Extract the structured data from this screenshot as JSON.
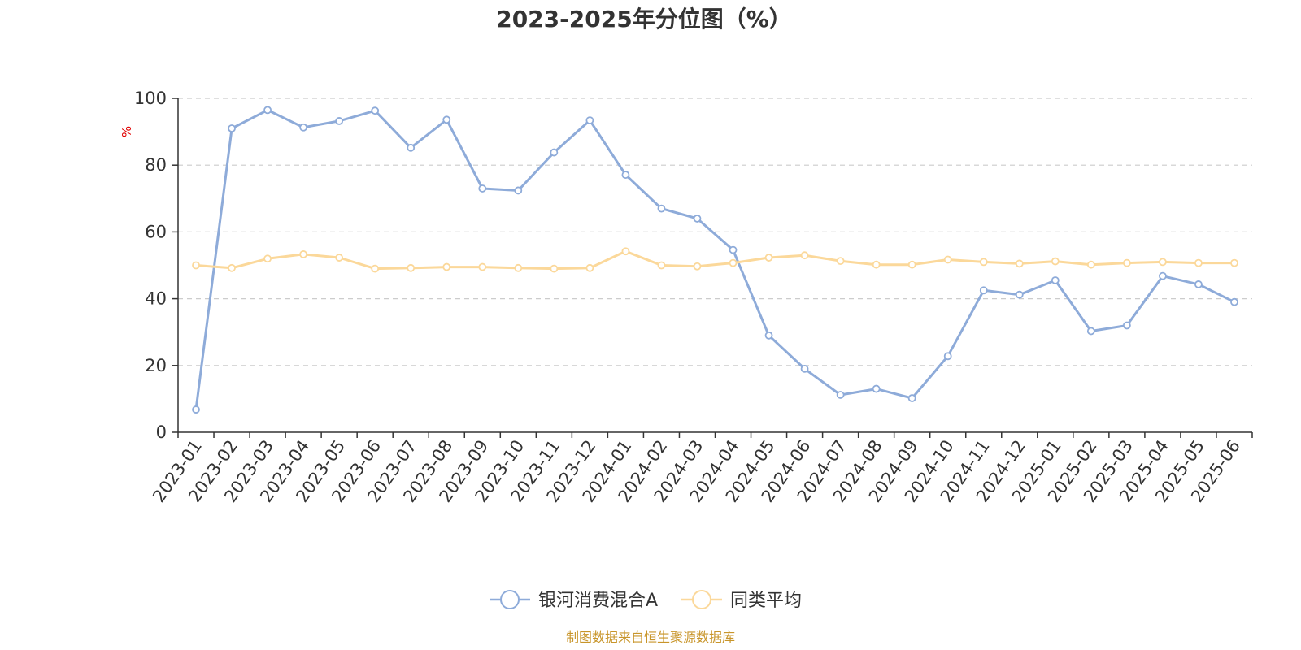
{
  "chart_data": {
    "type": "line",
    "title": "2023-2025年分位图（%）",
    "ylabel": "%",
    "ylim": [
      0,
      100
    ],
    "yticks": [
      0,
      20,
      40,
      60,
      80,
      100
    ],
    "grid": true,
    "legend_position": "bottom",
    "categories": [
      "2023-01",
      "2023-02",
      "2023-03",
      "2023-04",
      "2023-05",
      "2023-06",
      "2023-07",
      "2023-08",
      "2023-09",
      "2023-10",
      "2023-11",
      "2023-12",
      "2024-01",
      "2024-02",
      "2024-03",
      "2024-04",
      "2024-05",
      "2024-06",
      "2024-07",
      "2024-08",
      "2024-09",
      "2024-10",
      "2024-11",
      "2024-12",
      "2025-01",
      "2025-02",
      "2025-03",
      "2025-04",
      "2025-05",
      "2025-06"
    ],
    "series": [
      {
        "name": "银河消费混合A",
        "color": "#8eabd9",
        "values": [
          6.8,
          91.0,
          96.5,
          91.3,
          93.2,
          96.3,
          85.2,
          93.6,
          73.0,
          72.4,
          83.8,
          93.4,
          77.1,
          67.0,
          64.0,
          54.6,
          29.0,
          19.0,
          11.2,
          13.0,
          10.2,
          22.8,
          42.5,
          41.2,
          45.5,
          30.3,
          32.0,
          46.8,
          44.3,
          39.0
        ]
      },
      {
        "name": "同类平均",
        "color": "#fbd89a",
        "values": [
          50.0,
          49.2,
          52.0,
          53.3,
          52.3,
          49.0,
          49.2,
          49.5,
          49.5,
          49.2,
          49.0,
          49.2,
          54.2,
          50.0,
          49.7,
          50.7,
          52.3,
          53.0,
          51.3,
          50.2,
          50.2,
          51.7,
          51.0,
          50.5,
          51.2,
          50.2,
          50.7,
          51.0,
          50.7,
          50.7
        ]
      }
    ]
  },
  "source": "制图数据来自恒生聚源数据库"
}
